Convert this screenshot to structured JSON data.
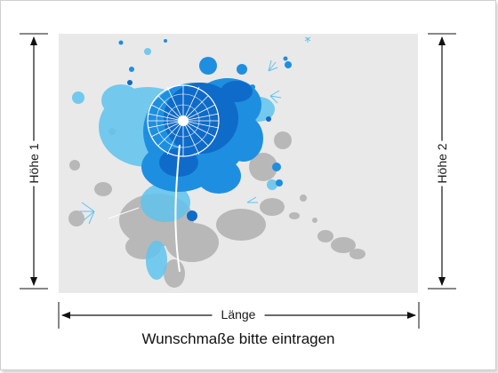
{
  "dimensions": {
    "height_left_label": "Höhe 1",
    "height_right_label": "Höhe 2",
    "length_label": "Länge"
  },
  "caption": "Wunschmaße bitte eintragen",
  "artwork": {
    "subject": "dandelion-ink-splash",
    "colors": {
      "background": "#e9e9e9",
      "blue_dark": "#0f6bc9",
      "blue_mid": "#1e8fe0",
      "blue_light": "#5fc3ee",
      "grey_splash": "#9a9a9a",
      "dandelion": "#ffffff"
    }
  },
  "line_color": "#111111"
}
